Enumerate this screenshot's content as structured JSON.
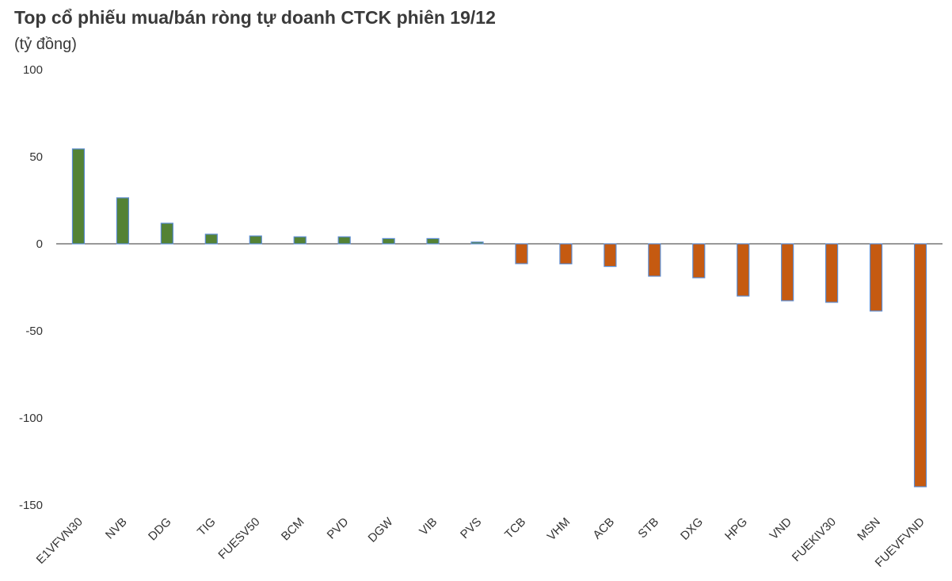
{
  "chart_data": {
    "type": "bar",
    "title": "Top cổ phiếu mua/bán ròng tự doanh CTCK phiên 19/12",
    "subtitle": "(tỷ đồng)",
    "categories": [
      "E1VFVN30",
      "NVB",
      "DDG",
      "TIG",
      "FUESV50",
      "BCM",
      "PVD",
      "DGW",
      "VIB",
      "PVS",
      "TCB",
      "VHM",
      "ACB",
      "STB",
      "DXG",
      "HPG",
      "VND",
      "FUEKIV30",
      "MSN",
      "FUEVFVND"
    ],
    "values": [
      54.5,
      26.4,
      11.8,
      5.5,
      4.5,
      4,
      4,
      3,
      3,
      1,
      -11.4,
      -11.5,
      -13,
      -18.6,
      -19.5,
      -30,
      -32.7,
      -33.6,
      -38.6,
      -139.5
    ],
    "positive_color": "#548235",
    "negative_color": "#c55a11",
    "outline_color": "#5b8bd0",
    "ylim": [
      -150,
      100
    ],
    "yticks": [
      -150,
      -100,
      -50,
      0,
      50,
      100
    ],
    "grid": false
  }
}
